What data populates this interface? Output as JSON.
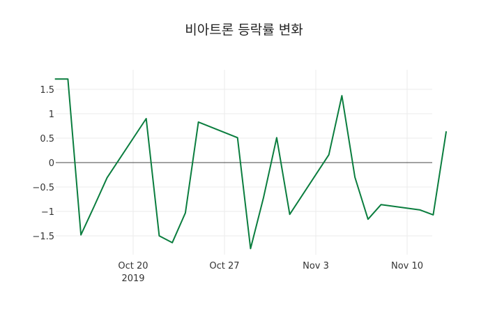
{
  "chart_data": {
    "type": "line",
    "title": "비아트론 등락률 변화",
    "xlabel": "",
    "ylabel": "",
    "x": [
      "2019-10-14",
      "2019-10-15",
      "2019-10-16",
      "2019-10-17",
      "2019-10-18",
      "2019-10-21",
      "2019-10-22",
      "2019-10-23",
      "2019-10-24",
      "2019-10-25",
      "2019-10-28",
      "2019-10-29",
      "2019-10-30",
      "2019-10-31",
      "2019-11-01",
      "2019-11-04",
      "2019-11-05",
      "2019-11-06",
      "2019-11-07",
      "2019-11-08",
      "2019-11-11",
      "2019-11-12",
      "2019-11-13"
    ],
    "series": [
      {
        "name": "등락률",
        "color": "#0a7d3e",
        "values": [
          1.71,
          1.71,
          -1.48,
          -0.9,
          -0.31,
          0.9,
          -1.5,
          -1.64,
          -1.03,
          0.83,
          0.51,
          -1.76,
          -0.71,
          0.51,
          -1.06,
          0.16,
          1.37,
          -0.3,
          -1.16,
          -0.86,
          -0.97,
          -1.07,
          0.64
        ]
      }
    ],
    "yticks": [
      -1.5,
      -1,
      -0.5,
      0,
      0.5,
      1,
      1.5
    ],
    "ytick_labels": [
      "−1.5",
      "−1",
      "−0.5",
      "0",
      "0.5",
      "1",
      "1.5"
    ],
    "xticks": [
      "2019-10-20",
      "2019-10-27",
      "2019-11-03",
      "2019-11-10"
    ],
    "xtick_labels": [
      "Oct 20",
      "Oct 27",
      "Nov 3",
      "Nov 10"
    ],
    "xtick_sublabel": "2019",
    "ylim": [
      -1.9,
      1.9
    ],
    "xlim": [
      "2019-10-14",
      "2019-11-13"
    ],
    "grid": true,
    "legend": "none"
  }
}
